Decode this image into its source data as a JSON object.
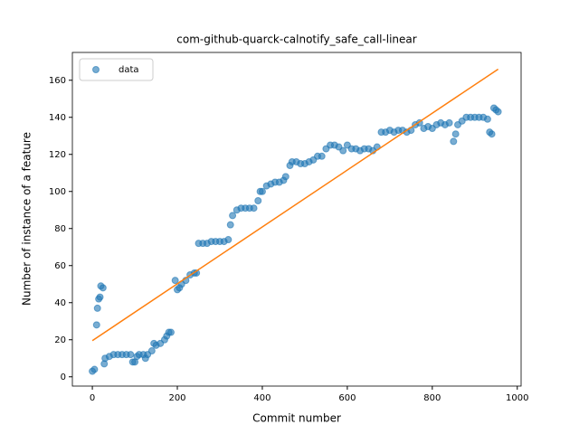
{
  "chart_data": {
    "type": "scatter",
    "title": "com-github-quarck-calnotify_safe_call-linear",
    "xlabel": "Commit number",
    "ylabel": "Number of instance of a feature",
    "legend": "upper left",
    "xlim": [
      -47,
      1009
    ],
    "ylim": [
      -5,
      175
    ],
    "xticks": [
      0,
      200,
      400,
      600,
      800,
      1000
    ],
    "yticks": [
      0,
      20,
      40,
      60,
      80,
      100,
      120,
      140,
      160
    ],
    "series": [
      {
        "name": "data",
        "color": "#1f77b4",
        "kind": "scatter",
        "x": [
          0,
          5,
          10,
          12,
          15,
          18,
          20,
          25,
          28,
          30,
          40,
          50,
          60,
          70,
          80,
          90,
          95,
          100,
          105,
          110,
          120,
          125,
          130,
          140,
          145,
          150,
          160,
          170,
          175,
          180,
          185,
          195,
          200,
          205,
          210,
          220,
          230,
          240,
          245,
          250,
          260,
          270,
          280,
          290,
          300,
          310,
          320,
          325,
          330,
          340,
          350,
          360,
          370,
          380,
          390,
          395,
          400,
          410,
          420,
          430,
          440,
          450,
          455,
          465,
          470,
          480,
          490,
          500,
          510,
          520,
          530,
          540,
          550,
          560,
          570,
          580,
          590,
          600,
          610,
          620,
          630,
          640,
          650,
          660,
          670,
          680,
          690,
          700,
          710,
          720,
          730,
          740,
          750,
          760,
          770,
          780,
          790,
          800,
          810,
          820,
          830,
          840,
          850,
          855,
          860,
          870,
          880,
          890,
          900,
          910,
          920,
          930,
          935,
          940,
          945,
          950,
          955
        ],
        "values": [
          3,
          4,
          28,
          37,
          42,
          43,
          49,
          48,
          7,
          10,
          11,
          12,
          12,
          12,
          12,
          12,
          8,
          8,
          11,
          12,
          12,
          10,
          12,
          14,
          18,
          17,
          18,
          20,
          22,
          24,
          24,
          52,
          47,
          48,
          50,
          52,
          55,
          56,
          56,
          72,
          72,
          72,
          73,
          73,
          73,
          73,
          74,
          82,
          87,
          90,
          91,
          91,
          91,
          91,
          95,
          100,
          100,
          103,
          104,
          105,
          105,
          106,
          108,
          114,
          116,
          116,
          115,
          115,
          116,
          117,
          119,
          119,
          123,
          125,
          125,
          124,
          122,
          125,
          123,
          123,
          122,
          123,
          123,
          122,
          124,
          132,
          132,
          133,
          132,
          133,
          133,
          132,
          133,
          136,
          137,
          134,
          135,
          134,
          136,
          137,
          136,
          137,
          127,
          131,
          136,
          138,
          140,
          140,
          140,
          140,
          140,
          139,
          132,
          131,
          145,
          144,
          143
        ]
      },
      {
        "color": "#ff7f0e",
        "kind": "line",
        "x": [
          0,
          955
        ],
        "values": [
          19.5,
          166
        ]
      }
    ]
  }
}
